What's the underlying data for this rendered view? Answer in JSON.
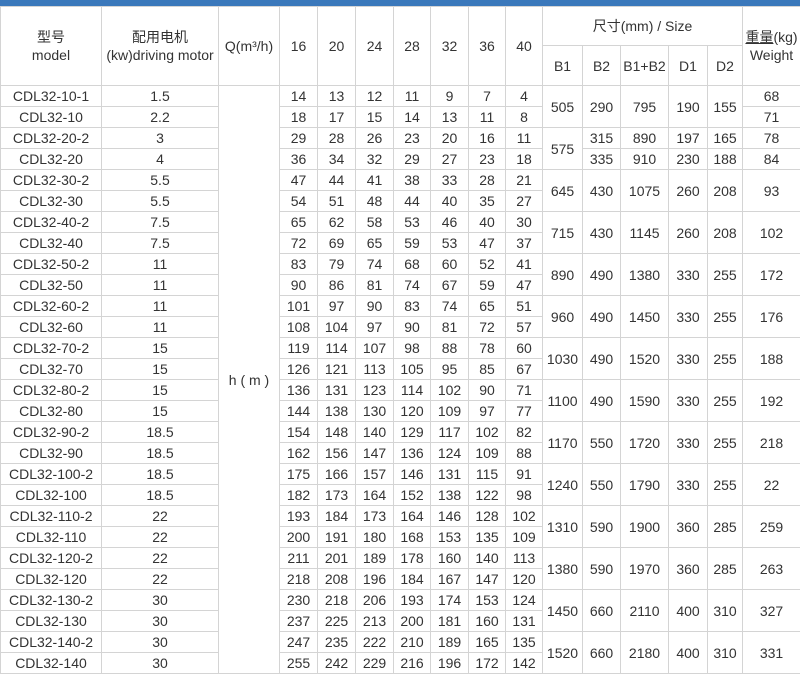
{
  "page": {
    "top_bar_color": "#3a78bb"
  },
  "table": {
    "headers": {
      "model_zh": "型号",
      "model_en": "model",
      "motor_zh": "配用电机",
      "motor_en": "(kw)driving motor",
      "q_label": "Q(m³/h)",
      "flow_columns": [
        "16",
        "20",
        "24",
        "28",
        "32",
        "36",
        "40"
      ],
      "size_group_label": "尺寸(mm) / Size",
      "size_columns": [
        "B1",
        "B2",
        "B1+B2",
        "D1",
        "D2"
      ],
      "weight_zh": "重量",
      "weight_unit": "(kg)",
      "weight_en": "Weight",
      "h_label": "h ( m )"
    },
    "rows": [
      {
        "model": "CDL32-10-1",
        "motor": "1.5",
        "head": [
          14,
          13,
          12,
          11,
          9,
          7,
          4
        ],
        "tail": [
          [
            "b1",
            505,
            2
          ],
          [
            "b2",
            290,
            2
          ],
          [
            "b1b2",
            795,
            2
          ],
          [
            "d1",
            190,
            2
          ],
          [
            "d2",
            155,
            2
          ],
          [
            "w",
            68,
            1
          ]
        ]
      },
      {
        "model": "CDL32-10",
        "motor": "2.2",
        "head": [
          18,
          17,
          15,
          14,
          13,
          11,
          8
        ],
        "tail": [
          [
            "w",
            71,
            1
          ]
        ]
      },
      {
        "model": "CDL32-20-2",
        "motor": "3",
        "head": [
          29,
          28,
          26,
          23,
          20,
          16,
          11
        ],
        "tail": [
          [
            "b1",
            575,
            2
          ],
          [
            "b2",
            315,
            1
          ],
          [
            "b1b2",
            890,
            1
          ],
          [
            "d1",
            197,
            1
          ],
          [
            "d2",
            165,
            1
          ],
          [
            "w",
            78,
            1
          ]
        ]
      },
      {
        "model": "CDL32-20",
        "motor": "4",
        "head": [
          36,
          34,
          32,
          29,
          27,
          23,
          18
        ],
        "tail": [
          [
            "b2",
            335,
            1
          ],
          [
            "b1b2",
            910,
            1
          ],
          [
            "d1",
            230,
            1
          ],
          [
            "d2",
            188,
            1
          ],
          [
            "w",
            84,
            1
          ]
        ]
      },
      {
        "model": "CDL32-30-2",
        "motor": "5.5",
        "head": [
          47,
          44,
          41,
          38,
          33,
          28,
          21
        ],
        "tail": [
          [
            "b1",
            645,
            2
          ],
          [
            "b2",
            430,
            2
          ],
          [
            "b1b2",
            1075,
            2
          ],
          [
            "d1",
            260,
            2
          ],
          [
            "d2",
            208,
            2
          ],
          [
            "w",
            93,
            2
          ]
        ]
      },
      {
        "model": "CDL32-30",
        "motor": "5.5",
        "head": [
          54,
          51,
          48,
          44,
          40,
          35,
          27
        ],
        "tail": []
      },
      {
        "model": "CDL32-40-2",
        "motor": "7.5",
        "head": [
          65,
          62,
          58,
          53,
          46,
          40,
          30
        ],
        "tail": [
          [
            "b1",
            715,
            2
          ],
          [
            "b2",
            430,
            2
          ],
          [
            "b1b2",
            1145,
            2
          ],
          [
            "d1",
            260,
            2
          ],
          [
            "d2",
            208,
            2
          ],
          [
            "w",
            102,
            2
          ]
        ]
      },
      {
        "model": "CDL32-40",
        "motor": "7.5",
        "head": [
          72,
          69,
          65,
          59,
          53,
          47,
          37
        ],
        "tail": []
      },
      {
        "model": "CDL32-50-2",
        "motor": "11",
        "head": [
          83,
          79,
          74,
          68,
          60,
          52,
          41
        ],
        "tail": [
          [
            "b1",
            890,
            2
          ],
          [
            "b2",
            490,
            2
          ],
          [
            "b1b2",
            1380,
            2
          ],
          [
            "d1",
            330,
            2
          ],
          [
            "d2",
            255,
            2
          ],
          [
            "w",
            172,
            2
          ]
        ]
      },
      {
        "model": "CDL32-50",
        "motor": "11",
        "head": [
          90,
          86,
          81,
          74,
          67,
          59,
          47
        ],
        "tail": []
      },
      {
        "model": "CDL32-60-2",
        "motor": "11",
        "head": [
          101,
          97,
          90,
          83,
          74,
          65,
          51
        ],
        "tail": [
          [
            "b1",
            960,
            2
          ],
          [
            "b2",
            490,
            2
          ],
          [
            "b1b2",
            1450,
            2
          ],
          [
            "d1",
            330,
            2
          ],
          [
            "d2",
            255,
            2
          ],
          [
            "w",
            176,
            2
          ]
        ]
      },
      {
        "model": "CDL32-60",
        "motor": "11",
        "head": [
          108,
          104,
          97,
          90,
          81,
          72,
          57
        ],
        "tail": []
      },
      {
        "model": "CDL32-70-2",
        "motor": "15",
        "head": [
          119,
          114,
          107,
          98,
          88,
          78,
          60
        ],
        "tail": [
          [
            "b1",
            1030,
            2
          ],
          [
            "b2",
            490,
            2
          ],
          [
            "b1b2",
            1520,
            2
          ],
          [
            "d1",
            330,
            2
          ],
          [
            "d2",
            255,
            2
          ],
          [
            "w",
            188,
            2
          ]
        ]
      },
      {
        "model": "CDL32-70",
        "motor": "15",
        "head": [
          126,
          121,
          113,
          105,
          95,
          85,
          67
        ],
        "tail": []
      },
      {
        "model": "CDL32-80-2",
        "motor": "15",
        "head": [
          136,
          131,
          123,
          114,
          102,
          90,
          71
        ],
        "tail": [
          [
            "b1",
            1100,
            2
          ],
          [
            "b2",
            490,
            2
          ],
          [
            "b1b2",
            1590,
            2
          ],
          [
            "d1",
            330,
            2
          ],
          [
            "d2",
            255,
            2
          ],
          [
            "w",
            192,
            2
          ]
        ]
      },
      {
        "model": "CDL32-80",
        "motor": "15",
        "head": [
          144,
          138,
          130,
          120,
          109,
          97,
          77
        ],
        "tail": []
      },
      {
        "model": "CDL32-90-2",
        "motor": "18.5",
        "head": [
          154,
          148,
          140,
          129,
          117,
          102,
          82
        ],
        "tail": [
          [
            "b1",
            1170,
            2
          ],
          [
            "b2",
            550,
            2
          ],
          [
            "b1b2",
            1720,
            2
          ],
          [
            "d1",
            330,
            2
          ],
          [
            "d2",
            255,
            2
          ],
          [
            "w",
            218,
            2
          ]
        ]
      },
      {
        "model": "CDL32-90",
        "motor": "18.5",
        "head": [
          162,
          156,
          147,
          136,
          124,
          109,
          88
        ],
        "tail": []
      },
      {
        "model": "CDL32-100-2",
        "motor": "18.5",
        "head": [
          175,
          166,
          157,
          146,
          131,
          115,
          91
        ],
        "tail": [
          [
            "b1",
            1240,
            2
          ],
          [
            "b2",
            550,
            2
          ],
          [
            "b1b2",
            1790,
            2
          ],
          [
            "d1",
            330,
            2
          ],
          [
            "d2",
            255,
            2
          ],
          [
            "w",
            22,
            2
          ]
        ]
      },
      {
        "model": "CDL32-100",
        "motor": "18.5",
        "head": [
          182,
          173,
          164,
          152,
          138,
          122,
          98
        ],
        "tail": []
      },
      {
        "model": "CDL32-110-2",
        "motor": "22",
        "head": [
          193,
          184,
          173,
          164,
          146,
          128,
          102
        ],
        "tail": [
          [
            "b1",
            1310,
            2
          ],
          [
            "b2",
            590,
            2
          ],
          [
            "b1b2",
            1900,
            2
          ],
          [
            "d1",
            360,
            2
          ],
          [
            "d2",
            285,
            2
          ],
          [
            "w",
            259,
            2
          ]
        ]
      },
      {
        "model": "CDL32-110",
        "motor": "22",
        "head": [
          200,
          191,
          180,
          168,
          153,
          135,
          109
        ],
        "tail": []
      },
      {
        "model": "CDL32-120-2",
        "motor": "22",
        "head": [
          211,
          201,
          189,
          178,
          160,
          140,
          113
        ],
        "tail": [
          [
            "b1",
            1380,
            2
          ],
          [
            "b2",
            590,
            2
          ],
          [
            "b1b2",
            1970,
            2
          ],
          [
            "d1",
            360,
            2
          ],
          [
            "d2",
            285,
            2
          ],
          [
            "w",
            263,
            2
          ]
        ]
      },
      {
        "model": "CDL32-120",
        "motor": "22",
        "head": [
          218,
          208,
          196,
          184,
          167,
          147,
          120
        ],
        "tail": []
      },
      {
        "model": "CDL32-130-2",
        "motor": "30",
        "head": [
          230,
          218,
          206,
          193,
          174,
          153,
          124
        ],
        "tail": [
          [
            "b1",
            1450,
            2
          ],
          [
            "b2",
            660,
            2
          ],
          [
            "b1b2",
            2110,
            2
          ],
          [
            "d1",
            400,
            2
          ],
          [
            "d2",
            310,
            2
          ],
          [
            "w",
            327,
            2
          ]
        ]
      },
      {
        "model": "CDL32-130",
        "motor": "30",
        "head": [
          237,
          225,
          213,
          200,
          181,
          160,
          131
        ],
        "tail": []
      },
      {
        "model": "CDL32-140-2",
        "motor": "30",
        "head": [
          247,
          235,
          222,
          210,
          189,
          165,
          135
        ],
        "tail": [
          [
            "b1",
            1520,
            2
          ],
          [
            "b2",
            660,
            2
          ],
          [
            "b1b2",
            2180,
            2
          ],
          [
            "d1",
            400,
            2
          ],
          [
            "d2",
            310,
            2
          ],
          [
            "w",
            331,
            2
          ]
        ]
      },
      {
        "model": "CDL32-140",
        "motor": "30",
        "head": [
          255,
          242,
          229,
          216,
          196,
          172,
          142
        ],
        "tail": []
      }
    ]
  }
}
